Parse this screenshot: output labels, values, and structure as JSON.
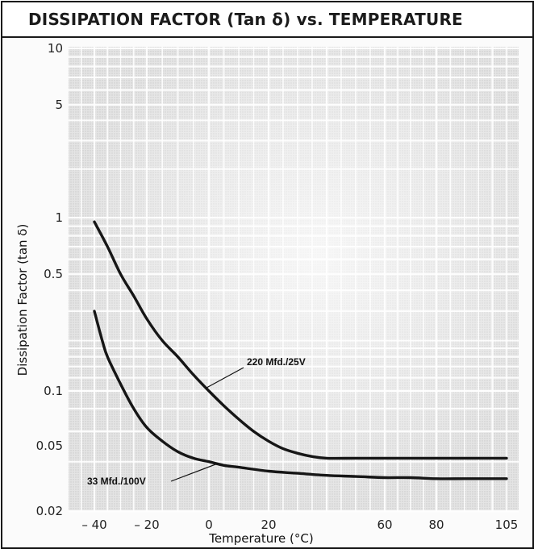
{
  "chart_data": {
    "type": "line",
    "title": "DISSIPATION FACTOR (Tan δ) vs. TEMPERATURE",
    "xlabel": "Temperature (°C)",
    "ylabel": "Dissipation Factor (tan δ)",
    "yscale": "log",
    "xlim": [
      -45,
      110
    ],
    "ylim": [
      0.02,
      10
    ],
    "grid": true,
    "x_ticks": [
      {
        "value": -40,
        "label": "– 40"
      },
      {
        "value": -20,
        "label": "– 20"
      },
      {
        "value": 0,
        "label": "0"
      },
      {
        "value": 20,
        "label": "20"
      },
      {
        "value": 60,
        "label": "60"
      },
      {
        "value": 80,
        "label": "80"
      },
      {
        "value": 105,
        "label": "105"
      }
    ],
    "y_ticks": [
      {
        "value": 10,
        "label": "10"
      },
      {
        "value": 5,
        "label": "5"
      },
      {
        "value": 1,
        "label": "1"
      },
      {
        "value": 0.5,
        "label": "0.5"
      },
      {
        "value": 0.1,
        "label": "0.1"
      },
      {
        "value": 0.05,
        "label": "0.05"
      },
      {
        "value": 0.02,
        "label": "0.02"
      }
    ],
    "series": [
      {
        "name": "220 Mfd./25V",
        "x": [
          -40,
          -35,
          -30,
          -25,
          -20,
          -15,
          -10,
          -5,
          0,
          5,
          10,
          15,
          20,
          25,
          30,
          35,
          40,
          50,
          60,
          70,
          80,
          90,
          100,
          105
        ],
        "y": [
          0.95,
          0.7,
          0.5,
          0.37,
          0.27,
          0.2,
          0.16,
          0.125,
          0.1,
          0.083,
          0.07,
          0.06,
          0.053,
          0.048,
          0.045,
          0.043,
          0.042,
          0.042,
          0.042,
          0.042,
          0.042,
          0.042,
          0.042,
          0.042
        ]
      },
      {
        "name": "33 Mfd./100V",
        "x": [
          -40,
          -37,
          -35,
          -30,
          -25,
          -20,
          -15,
          -10,
          -5,
          0,
          5,
          10,
          20,
          30,
          40,
          50,
          60,
          70,
          80,
          90,
          100,
          105
        ],
        "y": [
          0.3,
          0.2,
          0.16,
          0.11,
          0.08,
          0.063,
          0.053,
          0.046,
          0.042,
          0.04,
          0.038,
          0.037,
          0.035,
          0.034,
          0.033,
          0.0325,
          0.032,
          0.032,
          0.0315,
          0.0315,
          0.0315,
          0.0315
        ]
      }
    ],
    "annotations": [
      {
        "text": "220 Mfd./25V",
        "series": "220 Mfd./25V"
      },
      {
        "text": "33 Mfd./100V",
        "series": "33 Mfd./100V"
      }
    ]
  }
}
